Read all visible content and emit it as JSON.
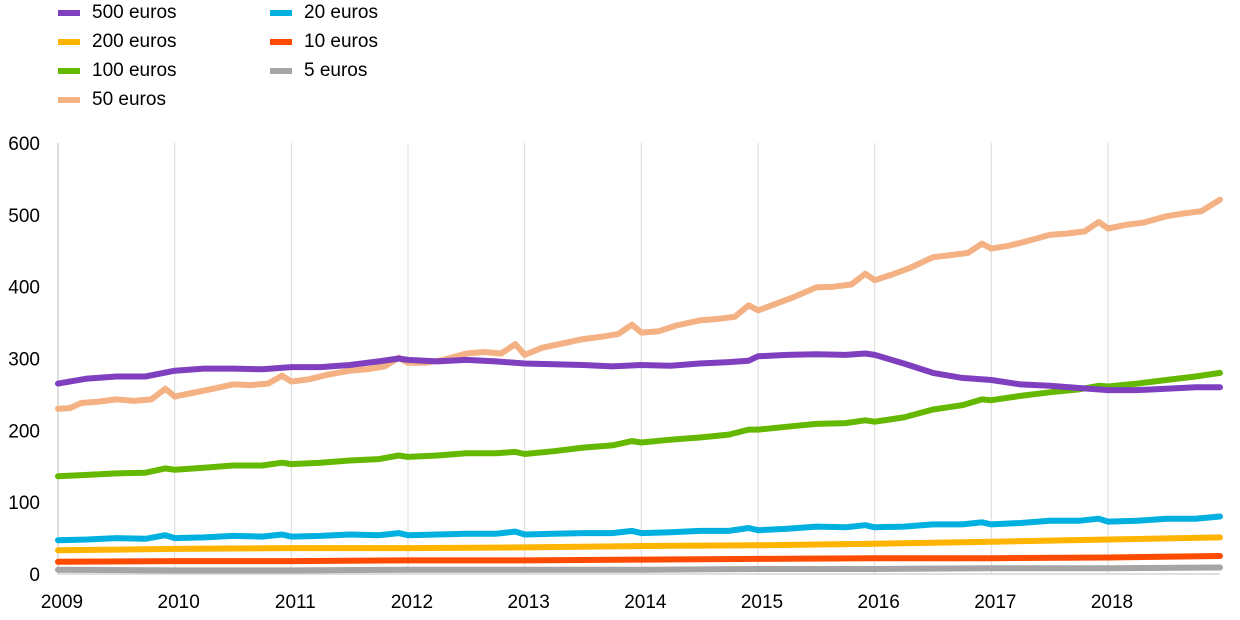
{
  "chart_data": {
    "type": "line",
    "title": "",
    "xlabel": "",
    "ylabel": "",
    "ylim": [
      0,
      600
    ],
    "yticks": [
      "0",
      "100",
      "200",
      "300",
      "400",
      "500",
      "600"
    ],
    "xlim": [
      2009.0,
      2018.96
    ],
    "xticks": [
      "2009",
      "2010",
      "2011",
      "2012",
      "2013",
      "2014",
      "2015",
      "2016",
      "2017",
      "2018"
    ],
    "grid": "vertical",
    "legend_position": "top-left",
    "series": [
      {
        "name": "500 euros",
        "color": "#7f3fbf",
        "x": [
          2009.0,
          2009.25,
          2009.5,
          2009.75,
          2010.0,
          2010.25,
          2010.5,
          2010.75,
          2011.0,
          2011.25,
          2011.5,
          2011.75,
          2011.92,
          2012.0,
          2012.25,
          2012.5,
          2012.75,
          2013.0,
          2013.25,
          2013.5,
          2013.75,
          2014.0,
          2014.25,
          2014.5,
          2014.75,
          2014.92,
          2015.0,
          2015.25,
          2015.5,
          2015.75,
          2015.92,
          2016.0,
          2016.25,
          2016.5,
          2016.75,
          2017.0,
          2017.25,
          2017.5,
          2017.75,
          2018.0,
          2018.25,
          2018.5,
          2018.75,
          2018.96
        ],
        "values": [
          265,
          272,
          275,
          275,
          283,
          286,
          286,
          285,
          288,
          288,
          291,
          296,
          300,
          298,
          296,
          298,
          296,
          293,
          292,
          291,
          289,
          291,
          290,
          293,
          295,
          297,
          303,
          305,
          306,
          305,
          307,
          305,
          293,
          280,
          273,
          270,
          264,
          262,
          259,
          256,
          256,
          258,
          260,
          260
        ]
      },
      {
        "name": "200 euros",
        "color": "#ffb400",
        "x": [
          2009.0,
          2010.0,
          2011.0,
          2012.0,
          2013.0,
          2014.0,
          2015.0,
          2016.0,
          2017.0,
          2018.0,
          2018.96
        ],
        "values": [
          33,
          35,
          36,
          36,
          37,
          39,
          40,
          42,
          45,
          48,
          51
        ]
      },
      {
        "name": "100 euros",
        "color": "#65b800",
        "x": [
          2009.0,
          2009.25,
          2009.5,
          2009.75,
          2009.92,
          2010.0,
          2010.25,
          2010.5,
          2010.75,
          2010.92,
          2011.0,
          2011.25,
          2011.5,
          2011.75,
          2011.92,
          2012.0,
          2012.25,
          2012.5,
          2012.75,
          2012.92,
          2013.0,
          2013.25,
          2013.5,
          2013.75,
          2013.92,
          2014.0,
          2014.25,
          2014.5,
          2014.75,
          2014.92,
          2015.0,
          2015.25,
          2015.5,
          2015.75,
          2015.92,
          2016.0,
          2016.25,
          2016.5,
          2016.75,
          2016.92,
          2017.0,
          2017.25,
          2017.5,
          2017.75,
          2017.92,
          2018.0,
          2018.25,
          2018.5,
          2018.75,
          2018.96
        ],
        "values": [
          136,
          138,
          140,
          141,
          147,
          145,
          148,
          151,
          151,
          155,
          153,
          155,
          158,
          160,
          165,
          163,
          165,
          168,
          168,
          170,
          167,
          171,
          176,
          179,
          185,
          183,
          187,
          190,
          194,
          201,
          201,
          205,
          209,
          210,
          214,
          212,
          218,
          229,
          235,
          243,
          242,
          248,
          253,
          257,
          262,
          261,
          265,
          270,
          275,
          280
        ]
      },
      {
        "name": "50 euros",
        "color": "#f4b183",
        "x": [
          2009.0,
          2009.1,
          2009.2,
          2009.35,
          2009.5,
          2009.65,
          2009.8,
          2009.92,
          2010.0,
          2010.15,
          2010.3,
          2010.5,
          2010.65,
          2010.8,
          2010.92,
          2011.0,
          2011.15,
          2011.3,
          2011.5,
          2011.65,
          2011.8,
          2011.92,
          2012.0,
          2012.15,
          2012.3,
          2012.5,
          2012.65,
          2012.8,
          2012.92,
          2013.0,
          2013.15,
          2013.3,
          2013.5,
          2013.65,
          2013.8,
          2013.92,
          2014.0,
          2014.15,
          2014.3,
          2014.5,
          2014.65,
          2014.8,
          2014.92,
          2015.0,
          2015.15,
          2015.3,
          2015.5,
          2015.65,
          2015.8,
          2015.92,
          2016.0,
          2016.15,
          2016.3,
          2016.5,
          2016.65,
          2016.8,
          2016.92,
          2017.0,
          2017.15,
          2017.3,
          2017.5,
          2017.65,
          2017.8,
          2017.92,
          2018.0,
          2018.15,
          2018.3,
          2018.5,
          2018.65,
          2018.8,
          2018.96
        ],
        "values": [
          230,
          231,
          238,
          240,
          243,
          241,
          243,
          258,
          247,
          252,
          257,
          264,
          263,
          265,
          276,
          268,
          271,
          277,
          283,
          285,
          289,
          301,
          294,
          294,
          298,
          307,
          309,
          307,
          320,
          305,
          315,
          320,
          327,
          330,
          334,
          347,
          336,
          338,
          346,
          353,
          355,
          358,
          374,
          367,
          376,
          385,
          399,
          400,
          403,
          418,
          409,
          417,
          426,
          441,
          444,
          447,
          460,
          453,
          457,
          463,
          472,
          474,
          477,
          490,
          481,
          486,
          489,
          498,
          502,
          505,
          521
        ]
      },
      {
        "name": "20 euros",
        "color": "#00b0e0",
        "x": [
          2009.0,
          2009.25,
          2009.5,
          2009.75,
          2009.92,
          2010.0,
          2010.25,
          2010.5,
          2010.75,
          2010.92,
          2011.0,
          2011.25,
          2011.5,
          2011.75,
          2011.92,
          2012.0,
          2012.25,
          2012.5,
          2012.75,
          2012.92,
          2013.0,
          2013.25,
          2013.5,
          2013.75,
          2013.92,
          2014.0,
          2014.25,
          2014.5,
          2014.75,
          2014.92,
          2015.0,
          2015.25,
          2015.5,
          2015.75,
          2015.92,
          2016.0,
          2016.25,
          2016.5,
          2016.75,
          2016.92,
          2017.0,
          2017.25,
          2017.5,
          2017.75,
          2017.92,
          2018.0,
          2018.25,
          2018.5,
          2018.75,
          2018.96
        ],
        "values": [
          47,
          48,
          50,
          49,
          54,
          50,
          51,
          53,
          52,
          55,
          52,
          53,
          55,
          54,
          57,
          54,
          55,
          56,
          56,
          59,
          55,
          56,
          57,
          57,
          60,
          57,
          58,
          60,
          60,
          64,
          61,
          63,
          66,
          65,
          68,
          65,
          66,
          69,
          69,
          72,
          69,
          71,
          74,
          74,
          77,
          73,
          74,
          77,
          77,
          80
        ]
      },
      {
        "name": "10 euros",
        "color": "#ff4b00",
        "x": [
          2009.0,
          2010.0,
          2011.0,
          2012.0,
          2013.0,
          2014.0,
          2015.0,
          2016.0,
          2017.0,
          2018.0,
          2018.96
        ],
        "values": [
          17,
          18,
          18,
          19,
          19,
          20,
          21,
          22,
          22,
          23,
          25
        ]
      },
      {
        "name": "5 euros",
        "color": "#a5a5a5",
        "x": [
          2009.0,
          2010.0,
          2011.0,
          2012.0,
          2013.0,
          2014.0,
          2015.0,
          2016.0,
          2017.0,
          2018.0,
          2018.96
        ],
        "values": [
          6,
          5,
          5,
          6,
          6,
          6,
          7,
          7,
          8,
          8,
          9
        ]
      }
    ]
  }
}
